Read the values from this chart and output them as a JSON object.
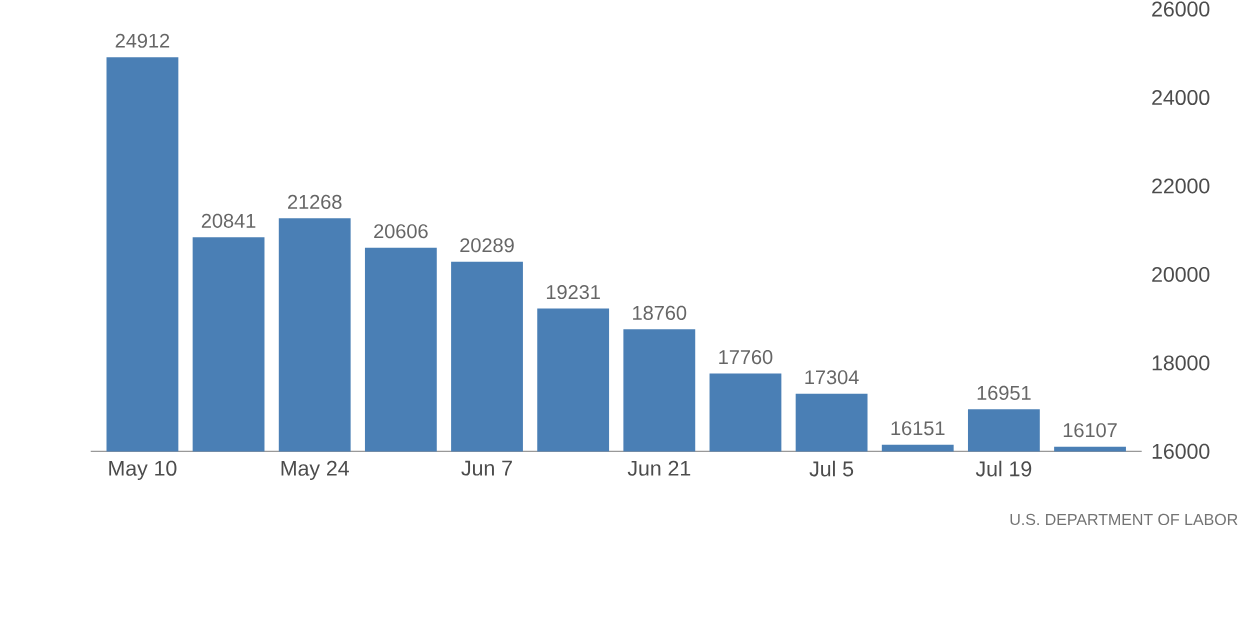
{
  "chart_data": {
    "type": "bar",
    "categories": [
      "May 10",
      null,
      "May 24",
      null,
      "Jun 7",
      null,
      "Jun 21",
      null,
      "Jul 5",
      null,
      "Jul 19",
      null
    ],
    "values": [
      24912,
      20841,
      21268,
      20606,
      20289,
      19231,
      18760,
      17760,
      17304,
      16151,
      16951,
      16107
    ],
    "color": "#4a7fb5",
    "ylim": [
      16000,
      26000
    ],
    "yticks": [
      16000,
      18000,
      20000,
      22000,
      24000,
      26000
    ],
    "grid": false,
    "data_labels": true,
    "annotations": [
      "U.S. DEPARTMENT OF LABOR"
    ]
  }
}
